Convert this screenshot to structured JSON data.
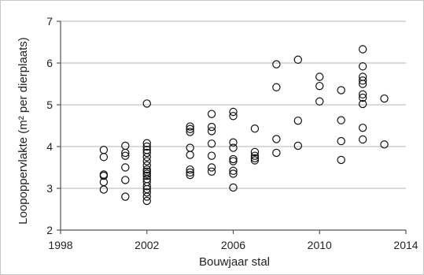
{
  "chart_data": {
    "type": "scatter",
    "xlabel": "Bouwjaar stal",
    "ylabel": "Loopoppervlakte (m² per dierplaats)",
    "xlim": [
      1998,
      2014
    ],
    "ylim": [
      2,
      7
    ],
    "xticks": [
      "1998",
      "2002",
      "2006",
      "2010",
      "2014"
    ],
    "yticks": [
      "2",
      "3",
      "4",
      "5",
      "6",
      "7"
    ],
    "grid": "horizontal",
    "points": [
      {
        "x": 2000,
        "y": 3.92
      },
      {
        "x": 2000,
        "y": 3.75
      },
      {
        "x": 2000,
        "y": 3.33
      },
      {
        "x": 2000,
        "y": 3.3
      },
      {
        "x": 2000,
        "y": 3.15
      },
      {
        "x": 2000,
        "y": 2.97
      },
      {
        "x": 2001,
        "y": 4.02
      },
      {
        "x": 2001,
        "y": 3.85
      },
      {
        "x": 2001,
        "y": 3.78
      },
      {
        "x": 2001,
        "y": 3.5
      },
      {
        "x": 2001,
        "y": 3.2
      },
      {
        "x": 2001,
        "y": 2.8
      },
      {
        "x": 2002,
        "y": 5.03
      },
      {
        "x": 2002,
        "y": 4.08
      },
      {
        "x": 2002,
        "y": 4.0
      },
      {
        "x": 2002,
        "y": 3.92
      },
      {
        "x": 2002,
        "y": 3.85
      },
      {
        "x": 2002,
        "y": 3.75
      },
      {
        "x": 2002,
        "y": 3.65
      },
      {
        "x": 2002,
        "y": 3.55
      },
      {
        "x": 2002,
        "y": 3.45
      },
      {
        "x": 2002,
        "y": 3.4
      },
      {
        "x": 2002,
        "y": 3.35
      },
      {
        "x": 2002,
        "y": 3.3
      },
      {
        "x": 2002,
        "y": 3.22
      },
      {
        "x": 2002,
        "y": 3.15
      },
      {
        "x": 2002,
        "y": 3.05
      },
      {
        "x": 2002,
        "y": 2.98
      },
      {
        "x": 2002,
        "y": 2.9
      },
      {
        "x": 2002,
        "y": 2.8
      },
      {
        "x": 2002,
        "y": 2.7
      },
      {
        "x": 2004,
        "y": 4.48
      },
      {
        "x": 2004,
        "y": 4.42
      },
      {
        "x": 2004,
        "y": 4.35
      },
      {
        "x": 2004,
        "y": 3.97
      },
      {
        "x": 2004,
        "y": 3.8
      },
      {
        "x": 2004,
        "y": 3.45
      },
      {
        "x": 2004,
        "y": 3.38
      },
      {
        "x": 2004,
        "y": 3.32
      },
      {
        "x": 2005,
        "y": 4.78
      },
      {
        "x": 2005,
        "y": 4.47
      },
      {
        "x": 2005,
        "y": 4.37
      },
      {
        "x": 2005,
        "y": 4.07
      },
      {
        "x": 2005,
        "y": 3.78
      },
      {
        "x": 2005,
        "y": 3.5
      },
      {
        "x": 2005,
        "y": 3.4
      },
      {
        "x": 2006,
        "y": 4.83
      },
      {
        "x": 2006,
        "y": 4.73
      },
      {
        "x": 2006,
        "y": 4.1
      },
      {
        "x": 2006,
        "y": 3.97
      },
      {
        "x": 2006,
        "y": 3.7
      },
      {
        "x": 2006,
        "y": 3.65
      },
      {
        "x": 2006,
        "y": 3.42
      },
      {
        "x": 2006,
        "y": 3.35
      },
      {
        "x": 2006,
        "y": 3.02
      },
      {
        "x": 2007,
        "y": 4.43
      },
      {
        "x": 2007,
        "y": 3.87
      },
      {
        "x": 2007,
        "y": 3.78
      },
      {
        "x": 2007,
        "y": 3.72
      },
      {
        "x": 2007,
        "y": 3.67
      },
      {
        "x": 2008,
        "y": 5.97
      },
      {
        "x": 2008,
        "y": 5.42
      },
      {
        "x": 2008,
        "y": 4.18
      },
      {
        "x": 2008,
        "y": 3.85
      },
      {
        "x": 2009,
        "y": 6.08
      },
      {
        "x": 2009,
        "y": 4.62
      },
      {
        "x": 2009,
        "y": 4.02
      },
      {
        "x": 2010,
        "y": 5.67
      },
      {
        "x": 2010,
        "y": 5.45
      },
      {
        "x": 2010,
        "y": 5.08
      },
      {
        "x": 2011,
        "y": 5.35
      },
      {
        "x": 2011,
        "y": 4.63
      },
      {
        "x": 2011,
        "y": 4.13
      },
      {
        "x": 2011,
        "y": 3.68
      },
      {
        "x": 2012,
        "y": 6.33
      },
      {
        "x": 2012,
        "y": 5.92
      },
      {
        "x": 2012,
        "y": 5.67
      },
      {
        "x": 2012,
        "y": 5.58
      },
      {
        "x": 2012,
        "y": 5.5
      },
      {
        "x": 2012,
        "y": 5.25
      },
      {
        "x": 2012,
        "y": 5.17
      },
      {
        "x": 2012,
        "y": 5.02
      },
      {
        "x": 2012,
        "y": 4.45
      },
      {
        "x": 2012,
        "y": 4.17
      },
      {
        "x": 2013,
        "y": 5.15
      },
      {
        "x": 2013,
        "y": 4.05
      }
    ]
  }
}
